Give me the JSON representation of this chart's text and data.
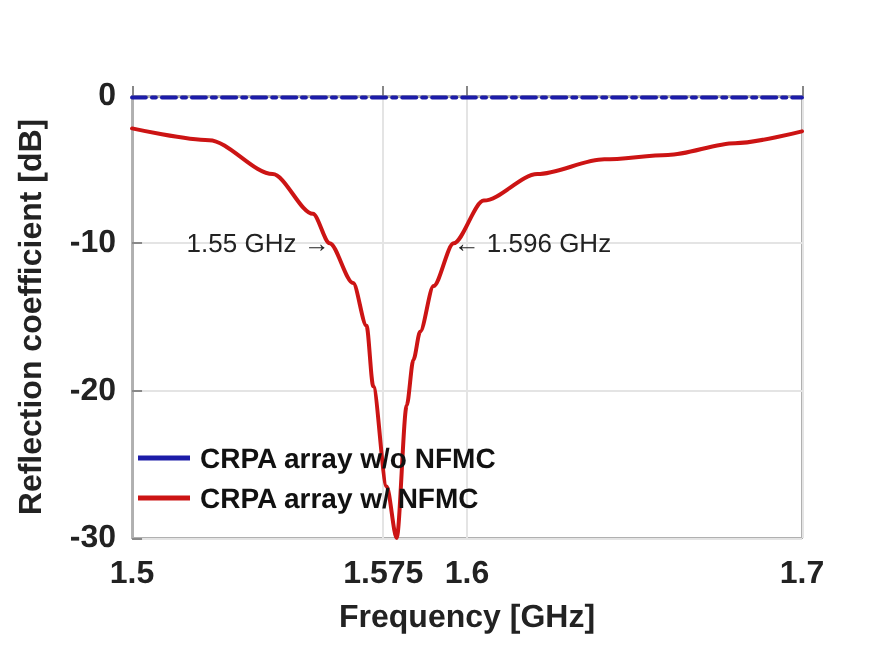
{
  "chart_data": {
    "type": "line",
    "xlabel": "Frequency [GHz]",
    "ylabel": "Reflection coefficient [dB]",
    "xlim": [
      1.5,
      1.7
    ],
    "xticks": [
      1.5,
      1.575,
      1.6,
      1.7
    ],
    "ylim": [
      -30,
      0
    ],
    "yticks": [
      0,
      -10,
      -20,
      -30
    ],
    "grid": true,
    "legend": "bottom left",
    "marker": "none",
    "series": [
      {
        "name": "CRPA array w/o NFMC",
        "color": "#1c1ca8",
        "line_style": "dashed",
        "x": [
          1.5,
          1.55,
          1.6,
          1.65,
          1.7
        ],
        "values": [
          -0.1,
          -0.1,
          -0.1,
          -0.1,
          -0.1
        ]
      },
      {
        "name": "CRPA array w/ NFMC",
        "color": "#cc1414",
        "line_style": "solid",
        "x": [
          1.5,
          1.523,
          1.542,
          1.554,
          1.559,
          1.566,
          1.57,
          1.572,
          1.576,
          1.579,
          1.582,
          1.584,
          1.586,
          1.59,
          1.596,
          1.605,
          1.621,
          1.641,
          1.66,
          1.68,
          1.7
        ],
        "values": [
          -2.2,
          -3.0,
          -5.3,
          -8.0,
          -10,
          -12.7,
          -15.6,
          -19.7,
          -26.5,
          -30,
          -21,
          -17.9,
          -16,
          -12.9,
          -10,
          -7.1,
          -5.3,
          -4.3,
          -4.0,
          -3.2,
          -2.4
        ]
      }
    ],
    "annotations": [
      {
        "text": "1.55 GHz →",
        "x": 1.559,
        "y": -10
      },
      {
        "text": "← 1.596 GHz",
        "x": 1.596,
        "y": -10
      }
    ]
  }
}
